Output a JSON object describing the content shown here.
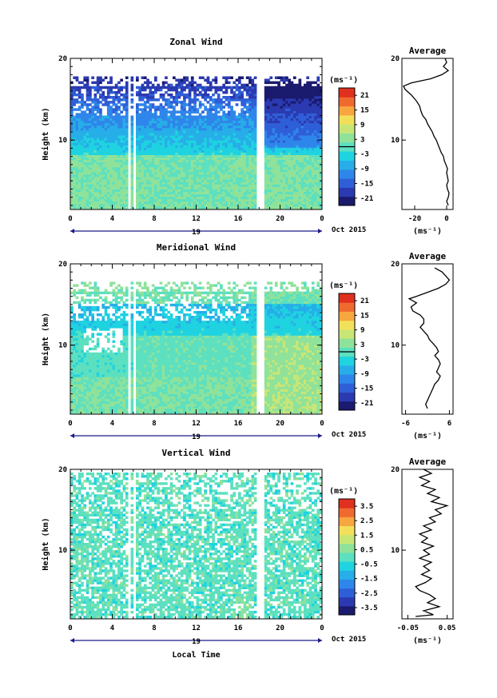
{
  "x_axis": {
    "ticks": [
      "0",
      "4",
      "8",
      "12",
      "16",
      "20",
      "0"
    ],
    "day": "19",
    "month_label": "Oct 2015",
    "label": "Local Time"
  },
  "unit_label": "(ms⁻¹)",
  "avg_unit_label": "(ms⁻¹)",
  "avg_title": "Average",
  "y_label": "Height (km)",
  "colormap": [
    "#1a1a6e",
    "#2b3ab0",
    "#2f5fd8",
    "#2f86ea",
    "#27aee8",
    "#1fd3e0",
    "#5ce0c0",
    "#8fe29a",
    "#c8e676",
    "#f2e05a",
    "#f7a640",
    "#f06a30",
    "#e0301e"
  ],
  "chart_data": [
    {
      "type": "heatmap",
      "title": "Zonal Wind",
      "xlabel": "",
      "ylabel": "Height (km)",
      "xlim": [
        0,
        24
      ],
      "ylim": [
        1.5,
        20
      ],
      "yticks": [
        "20",
        "10"
      ],
      "colorbar": {
        "min": -24,
        "max": 24,
        "ticks": [
          "21",
          "15",
          "9",
          "3",
          "-3",
          "-9",
          "-15",
          "-21"
        ],
        "zero_line": true
      },
      "profile": {
        "title": "Average",
        "xlim": [
          -28,
          4
        ],
        "xticks": [
          "-20",
          "0"
        ],
        "xtick_values": [
          -20,
          0
        ],
        "points": [
          [
            -1,
            20
          ],
          [
            0,
            19.5
          ],
          [
            -2,
            19
          ],
          [
            1,
            18.5
          ],
          [
            -3,
            18
          ],
          [
            -10,
            17.5
          ],
          [
            -22,
            17
          ],
          [
            -27,
            16.6
          ],
          [
            -26,
            16.2
          ],
          [
            -22,
            15.5
          ],
          [
            -19,
            14.8
          ],
          [
            -17,
            14.2
          ],
          [
            -16,
            13.5
          ],
          [
            -15,
            13
          ],
          [
            -13,
            12.5
          ],
          [
            -12,
            12
          ],
          [
            -10.5,
            11.5
          ],
          [
            -9,
            11
          ],
          [
            -8,
            10.5
          ],
          [
            -6.5,
            10
          ],
          [
            -5.5,
            9.5
          ],
          [
            -4.5,
            9
          ],
          [
            -3.5,
            8.5
          ],
          [
            -2,
            8
          ],
          [
            -1.5,
            7.5
          ],
          [
            -0.5,
            7
          ],
          [
            0.5,
            6.5
          ],
          [
            0,
            6
          ],
          [
            0.5,
            5.5
          ],
          [
            1,
            5
          ],
          [
            0,
            4.5
          ],
          [
            0.5,
            4
          ],
          [
            1.5,
            3.5
          ],
          [
            1,
            3
          ],
          [
            0,
            2.5
          ],
          [
            1,
            2
          ]
        ]
      }
    },
    {
      "type": "heatmap",
      "title": "Meridional Wind",
      "xlabel": "",
      "ylabel": "Height (km)",
      "xlim": [
        0,
        24
      ],
      "ylim": [
        1.5,
        20
      ],
      "yticks": [
        "20",
        "10"
      ],
      "colorbar": {
        "min": -24,
        "max": 24,
        "ticks": [
          "21",
          "15",
          "9",
          "3",
          "-3",
          "-9",
          "-15",
          "-21"
        ],
        "zero_line": true
      },
      "profile": {
        "title": "Average",
        "xlim": [
          -7,
          7
        ],
        "xticks": [
          "-6",
          "6"
        ],
        "xtick_values": [
          -6,
          6
        ],
        "points": [
          [
            2,
            19.5
          ],
          [
            4,
            19
          ],
          [
            5,
            18.5
          ],
          [
            6,
            18
          ],
          [
            5,
            17.5
          ],
          [
            3,
            17
          ],
          [
            0,
            16.5
          ],
          [
            -3,
            16
          ],
          [
            -5,
            15.7
          ],
          [
            -3,
            15.2
          ],
          [
            -4.5,
            14.7
          ],
          [
            -4,
            14.2
          ],
          [
            -2,
            13.7
          ],
          [
            -1,
            13.2
          ],
          [
            -1,
            12.7
          ],
          [
            -2,
            12.2
          ],
          [
            -1,
            11.7
          ],
          [
            0,
            11.2
          ],
          [
            0.5,
            10.7
          ],
          [
            1.5,
            10.2
          ],
          [
            2.5,
            9.7
          ],
          [
            3,
            9.2
          ],
          [
            2,
            8.7
          ],
          [
            3,
            8.2
          ],
          [
            3.5,
            7.7
          ],
          [
            3,
            7.2
          ],
          [
            2.5,
            6.7
          ],
          [
            3.5,
            6.2
          ],
          [
            3,
            5.7
          ],
          [
            2,
            5.2
          ],
          [
            1.5,
            4.7
          ],
          [
            1,
            4.2
          ],
          [
            0.5,
            3.7
          ],
          [
            0,
            3.2
          ],
          [
            -0.5,
            2.7
          ],
          [
            0,
            2.2
          ]
        ]
      }
    },
    {
      "type": "heatmap",
      "title": "Vertical Wind",
      "xlabel": "Local Time",
      "ylabel": "Height (km)",
      "xlim": [
        0,
        24
      ],
      "ylim": [
        1.5,
        20
      ],
      "yticks": [
        "20",
        "10"
      ],
      "colorbar": {
        "min": -4,
        "max": 4,
        "ticks": [
          "3.5",
          "2.5",
          "1.5",
          "0.5",
          "-0.5",
          "-1.5",
          "-2.5",
          "-3.5"
        ],
        "zero_line": false
      },
      "profile": {
        "title": "Average",
        "xlim": [
          -0.065,
          0.065
        ],
        "xticks": [
          "-0.05",
          "0.05"
        ],
        "xtick_values": [
          -0.05,
          0.05
        ],
        "points": [
          [
            -0.01,
            20
          ],
          [
            0.01,
            19.5
          ],
          [
            -0.02,
            19
          ],
          [
            0.005,
            18.5
          ],
          [
            -0.015,
            18
          ],
          [
            0.02,
            17.5
          ],
          [
            0,
            17
          ],
          [
            0.03,
            16.5
          ],
          [
            0.01,
            16
          ],
          [
            0.05,
            15.5
          ],
          [
            0.02,
            15
          ],
          [
            0.035,
            14.5
          ],
          [
            0.005,
            14
          ],
          [
            0.02,
            13.5
          ],
          [
            -0.01,
            13
          ],
          [
            0.01,
            12.5
          ],
          [
            -0.02,
            12
          ],
          [
            0,
            11.5
          ],
          [
            -0.015,
            11
          ],
          [
            0.015,
            10.5
          ],
          [
            -0.01,
            10
          ],
          [
            0.005,
            9.5
          ],
          [
            -0.02,
            9
          ],
          [
            0.01,
            8.5
          ],
          [
            -0.01,
            8
          ],
          [
            0.005,
            7.5
          ],
          [
            -0.015,
            7
          ],
          [
            0.01,
            6.5
          ],
          [
            -0.005,
            6
          ],
          [
            -0.03,
            5.5
          ],
          [
            -0.02,
            5
          ],
          [
            0.005,
            4.5
          ],
          [
            0.02,
            4
          ],
          [
            0,
            3.5
          ],
          [
            0.03,
            3
          ],
          [
            -0.01,
            2.5
          ],
          [
            0.015,
            2
          ],
          [
            -0.03,
            1.8
          ]
        ]
      }
    }
  ]
}
